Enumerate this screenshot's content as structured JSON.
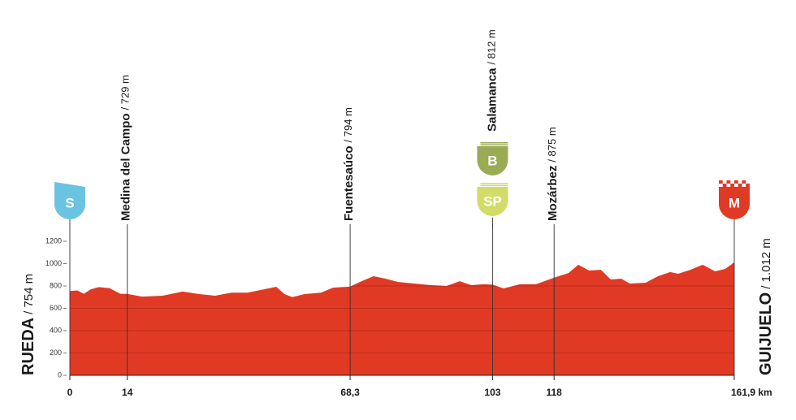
{
  "chart_data": {
    "type": "area",
    "color": "#e03a24",
    "grid": true,
    "xlim": [
      0,
      161.9
    ],
    "ylim": [
      0,
      1200
    ],
    "yticks": [
      0,
      200,
      400,
      600,
      800,
      1000,
      1200
    ],
    "xticks": [
      0,
      14,
      {
        "value": 68.3,
        "label": "68,3"
      },
      103,
      118,
      {
        "value": 161.9,
        "label": "161,9 km"
      }
    ],
    "x": [
      0,
      1.8,
      3.4,
      5.1,
      7.1,
      9.7,
      12.3,
      14,
      17.6,
      22.6,
      27.5,
      31.5,
      35.4,
      39.4,
      43.3,
      47.3,
      50.3,
      52.3,
      54.2,
      57.2,
      61.2,
      64.1,
      68.3,
      71.1,
      74.0,
      77.0,
      80.0,
      83.9,
      87.9,
      91.8,
      95.0,
      97.8,
      100.7,
      103,
      105.7,
      109.7,
      113.6,
      118,
      121.5,
      123.9,
      126.5,
      129.4,
      131.8,
      134.4,
      136.4,
      140.3,
      143.3,
      146.3,
      148.2,
      151.2,
      154.2,
      157.2,
      159.7,
      161.9
    ],
    "values": [
      754,
      760,
      730,
      770,
      790,
      780,
      730,
      729,
      705,
      713,
      750,
      727,
      713,
      740,
      740,
      770,
      793,
      727,
      700,
      727,
      740,
      785,
      794,
      843,
      887,
      865,
      836,
      822,
      807,
      800,
      843,
      807,
      815,
      812,
      778,
      815,
      815,
      875,
      916,
      990,
      938,
      945,
      858,
      865,
      822,
      829,
      887,
      924,
      909,
      945,
      990,
      931,
      953,
      1012
    ],
    "start": {
      "name": "RUEDA",
      "elevation_label": "/ 754 m",
      "icon": "S",
      "icon_color": "#6ac3e0"
    },
    "finish": {
      "name": "GUIJUELO",
      "elevation_label": "/ 1.012 m",
      "icon": "M",
      "icon_color": "#e03a24"
    },
    "waypoints": [
      {
        "name": "Medina del Campo",
        "km": 14,
        "elevation_label": "/ 729 m"
      },
      {
        "name": "Fuentesaúco",
        "km": 68.3,
        "elevation_label": "/ 794 m"
      },
      {
        "name": "Salamanca",
        "km": 103,
        "elevation_label": "/ 812 m",
        "icons": [
          {
            "label": "B",
            "color": "#9aab55"
          },
          {
            "label": "SP",
            "color": "#d3dc67"
          }
        ]
      },
      {
        "name": "Mozárbez",
        "km": 118,
        "elevation_label": "/ 875 m"
      }
    ]
  }
}
